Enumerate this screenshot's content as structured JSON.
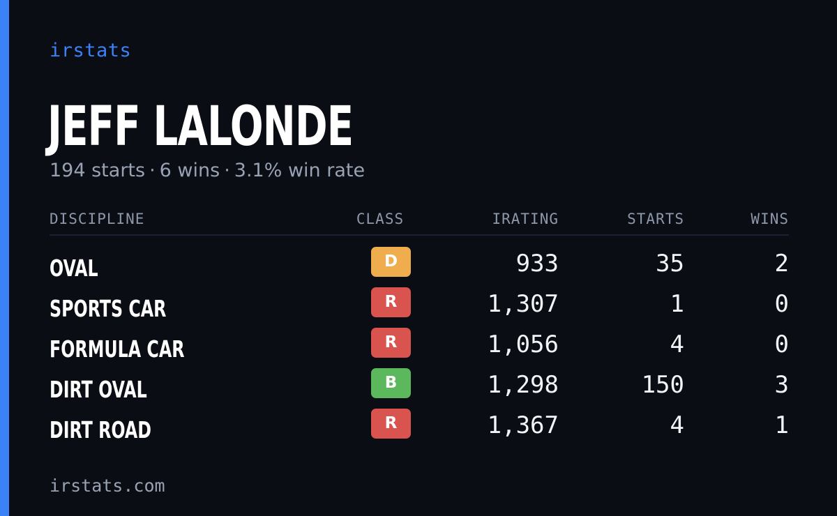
{
  "colors": {
    "accent": "#3b82f6",
    "background": "#0a0d14",
    "class_D": "#f0ad4e",
    "class_R": "#d9534f",
    "class_B": "#5cb85c"
  },
  "brand": "irstats",
  "player": {
    "name": "JEFF LALONDE",
    "starts_text": "194 starts",
    "wins_text": "6 wins",
    "win_rate_text": "3.1% win rate",
    "separator": "·"
  },
  "table": {
    "headers": {
      "discipline": "DISCIPLINE",
      "class": "CLASS",
      "irating": "IRATING",
      "starts": "STARTS",
      "wins": "WINS"
    },
    "rows": [
      {
        "discipline": "OVAL",
        "class": "D",
        "irating": "933",
        "starts": "35",
        "wins": "2"
      },
      {
        "discipline": "SPORTS CAR",
        "class": "R",
        "irating": "1,307",
        "starts": "1",
        "wins": "0"
      },
      {
        "discipline": "FORMULA CAR",
        "class": "R",
        "irating": "1,056",
        "starts": "4",
        "wins": "0"
      },
      {
        "discipline": "DIRT OVAL",
        "class": "B",
        "irating": "1,298",
        "starts": "150",
        "wins": "3"
      },
      {
        "discipline": "DIRT ROAD",
        "class": "R",
        "irating": "1,367",
        "starts": "4",
        "wins": "1"
      }
    ]
  },
  "footer": "irstats.com"
}
